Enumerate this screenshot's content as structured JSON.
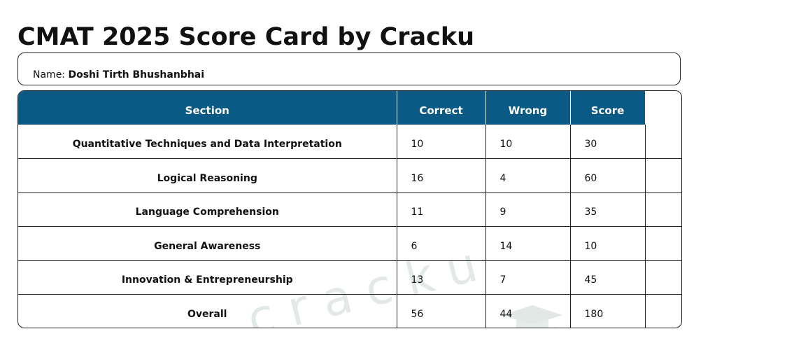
{
  "title": "CMAT 2025 Score Card by Cracku",
  "candidate": {
    "name_label": "Name:",
    "name_value": "Doshi Tirth Bhushanbhai"
  },
  "table": {
    "headers": {
      "section": "Section",
      "correct": "Correct",
      "wrong": "Wrong",
      "score": "Score"
    },
    "rows": [
      {
        "section": "Quantitative Techniques and Data Interpretation",
        "correct": "10",
        "wrong": "10",
        "score": "30"
      },
      {
        "section": "Logical Reasoning",
        "correct": "16",
        "wrong": "4",
        "score": "60"
      },
      {
        "section": "Language Comprehension",
        "correct": "11",
        "wrong": "9",
        "score": "35"
      },
      {
        "section": "General Awareness",
        "correct": "6",
        "wrong": "14",
        "score": "10"
      },
      {
        "section": "Innovation & Entrepreneurship",
        "correct": "13",
        "wrong": "7",
        "score": "45"
      },
      {
        "section": "Overall",
        "correct": "56",
        "wrong": "44",
        "score": "180"
      }
    ]
  },
  "watermark": {
    "text": "cracku"
  },
  "colors": {
    "header_bg": "#0b5a86",
    "header_text": "#ffffff",
    "border": "#222222",
    "watermark": "#e3e9e7"
  }
}
